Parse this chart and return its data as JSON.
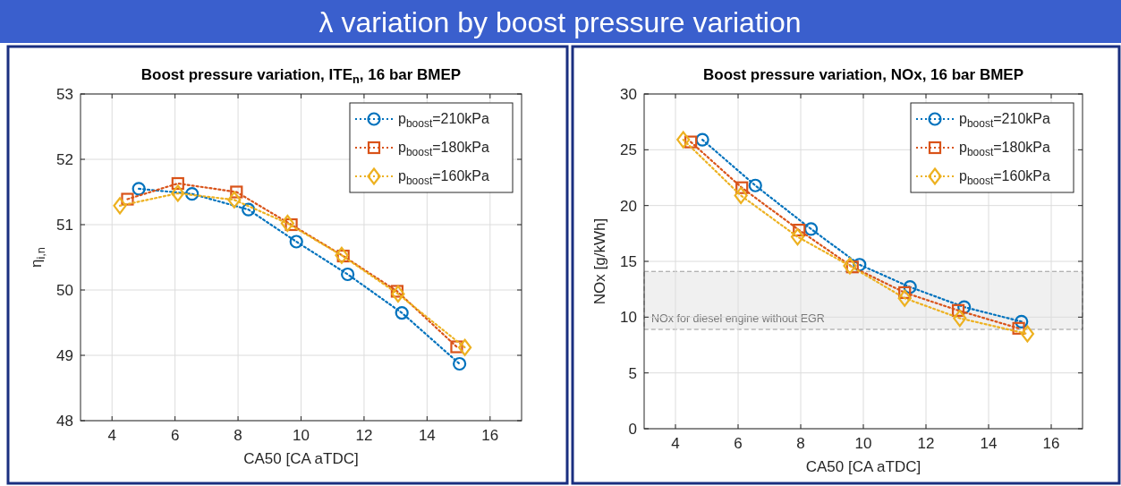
{
  "chart_data": [
    {
      "type": "line",
      "title": "Boost pressure variation, ITE$_{n}$, 16 bar BMEP",
      "xlabel": "CA50 [CA aTDC]",
      "ylabel": "η$_{i,n}$",
      "annotations": [
        "λ variation by boost pressure variation"
      ],
      "xlim": [
        3,
        17
      ],
      "xticks": [
        4,
        6,
        8,
        10,
        12,
        14,
        16
      ],
      "ylim": [
        48,
        53
      ],
      "yticks": [
        48,
        49,
        50,
        51,
        52,
        53
      ],
      "grid": true,
      "legend": "top right",
      "line_style": "dotted",
      "series": [
        {
          "name": "p$_{boost}$=210kPa",
          "color": "#0072bd",
          "marker": "circle",
          "x": [
            4.85,
            6.54,
            8.33,
            9.85,
            11.48,
            13.2,
            15.03
          ],
          "values": [
            51.55,
            51.47,
            51.23,
            50.74,
            50.24,
            49.65,
            48.87
          ]
        },
        {
          "name": "p$_{boost}$=180kPa",
          "color": "#d95319",
          "marker": "square",
          "x": [
            4.49,
            6.09,
            7.95,
            9.69,
            11.34,
            13.05,
            14.94
          ],
          "values": [
            51.39,
            51.63,
            51.5,
            51.0,
            50.52,
            49.98,
            49.13
          ]
        },
        {
          "name": "p$_{boost}$=160kPa",
          "color": "#edb120",
          "marker": "diamond",
          "x": [
            4.25,
            6.09,
            7.88,
            9.57,
            11.29,
            13.08,
            15.2
          ],
          "values": [
            51.29,
            51.48,
            51.38,
            51.02,
            50.53,
            49.94,
            49.12
          ]
        }
      ]
    },
    {
      "type": "line",
      "title": "Boost pressure variation, NOx, 16 bar BMEP",
      "xlabel": "CA50 [CA aTDC]",
      "ylabel": "NOx [g/kWh]",
      "xlim": [
        3,
        17
      ],
      "xticks": [
        4,
        6,
        8,
        10,
        12,
        14,
        16
      ],
      "ylim": [
        0,
        30
      ],
      "yticks": [
        0,
        5,
        10,
        15,
        20,
        25,
        30
      ],
      "grid": true,
      "legend": "top right",
      "line_style": "dotted",
      "bands": [
        {
          "axis": "y",
          "from": 8.9,
          "to": 14.1,
          "label": "NOx for diesel engine without EGR",
          "color": "#f0f0f0"
        }
      ],
      "series": [
        {
          "name": "p$_{boost}$=210kPa",
          "color": "#0072bd",
          "marker": "circle",
          "x": [
            4.86,
            6.55,
            8.33,
            9.88,
            11.49,
            13.22,
            15.05
          ],
          "values": [
            25.9,
            21.8,
            17.9,
            14.7,
            12.7,
            10.9,
            9.6
          ]
        },
        {
          "name": "p$_{boost}$=180kPa",
          "color": "#d95319",
          "marker": "square",
          "x": [
            4.49,
            6.12,
            7.95,
            9.65,
            11.32,
            13.03,
            14.96
          ],
          "values": [
            25.7,
            21.6,
            17.8,
            14.5,
            12.2,
            10.6,
            9.0
          ]
        },
        {
          "name": "p$_{boost}$=160kPa",
          "color": "#edb120",
          "marker": "diamond",
          "x": [
            4.25,
            6.09,
            7.9,
            9.57,
            11.32,
            13.08,
            15.24
          ],
          "values": [
            25.9,
            20.9,
            17.2,
            14.6,
            11.7,
            9.9,
            8.5
          ]
        }
      ]
    }
  ]
}
